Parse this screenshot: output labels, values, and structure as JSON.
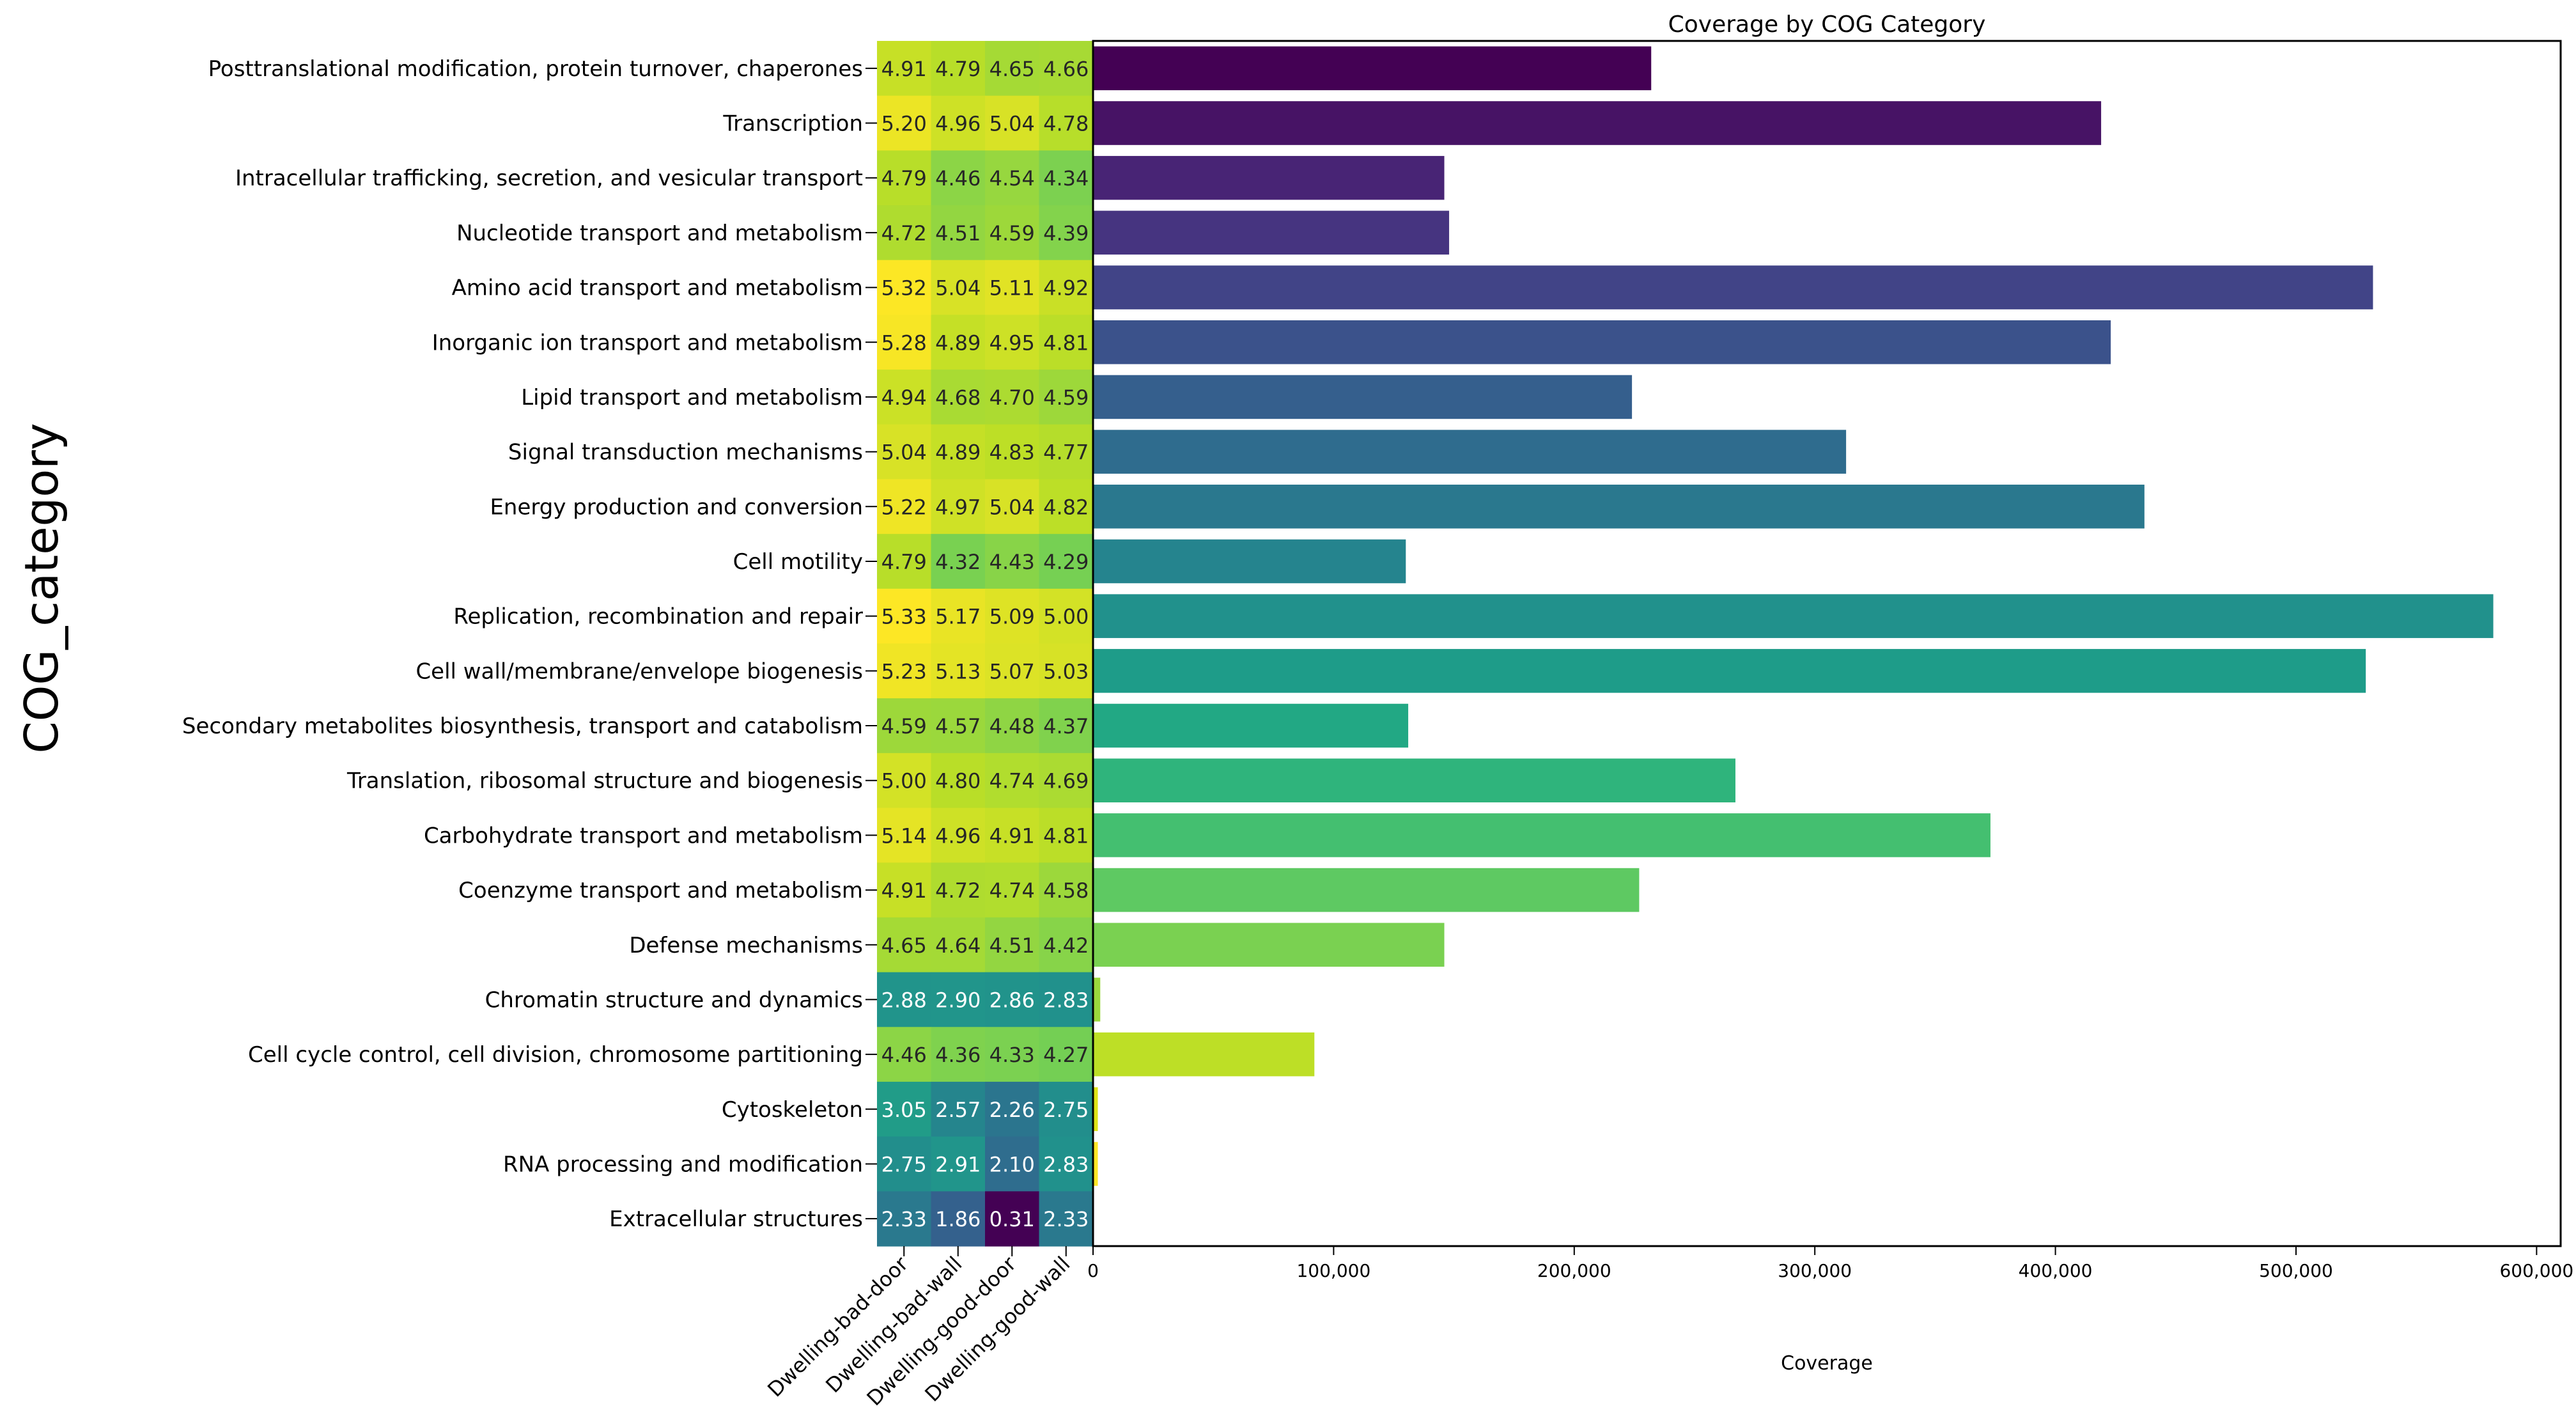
{
  "chart_data": [
    {
      "type": "heatmap",
      "ylabel": "COG_category",
      "columns": [
        "Dwelling-bad-door",
        "Dwelling-bad-wall",
        "Dwelling-good-door",
        "Dwelling-good-wall"
      ],
      "rows": [
        "Posttranslational modification, protein turnover, chaperones",
        "Transcription",
        "Intracellular trafficking, secretion, and vesicular transport",
        "Nucleotide transport and metabolism",
        "Amino acid transport and metabolism",
        "Inorganic ion transport and metabolism",
        "Lipid transport and metabolism",
        "Signal transduction mechanisms",
        "Energy production and conversion",
        "Cell motility",
        "Replication, recombination and repair",
        "Cell wall/membrane/envelope biogenesis",
        "Secondary metabolites biosynthesis, transport and catabolism",
        "Translation, ribosomal structure and biogenesis",
        "Carbohydrate transport and metabolism",
        "Coenzyme transport and metabolism",
        "Defense mechanisms",
        "Chromatin structure and dynamics",
        "Cell cycle control, cell division, chromosome partitioning",
        "Cytoskeleton",
        "RNA processing and modification",
        "Extracellular structures"
      ],
      "values": [
        [
          "4.91",
          "4.79",
          "4.65",
          "4.66"
        ],
        [
          "5.20",
          "4.96",
          "5.04",
          "4.78"
        ],
        [
          "4.79",
          "4.46",
          "4.54",
          "4.34"
        ],
        [
          "4.72",
          "4.51",
          "4.59",
          "4.39"
        ],
        [
          "5.32",
          "5.04",
          "5.11",
          "4.92"
        ],
        [
          "5.28",
          "4.89",
          "4.95",
          "4.81"
        ],
        [
          "4.94",
          "4.68",
          "4.70",
          "4.59"
        ],
        [
          "5.04",
          "4.89",
          "4.83",
          "4.77"
        ],
        [
          "5.22",
          "4.97",
          "5.04",
          "4.82"
        ],
        [
          "4.79",
          "4.32",
          "4.43",
          "4.29"
        ],
        [
          "5.33",
          "5.17",
          "5.09",
          "5.00"
        ],
        [
          "5.23",
          "5.13",
          "5.07",
          "5.03"
        ],
        [
          "4.59",
          "4.57",
          "4.48",
          "4.37"
        ],
        [
          "5.00",
          "4.80",
          "4.74",
          "4.69"
        ],
        [
          "5.14",
          "4.96",
          "4.91",
          "4.81"
        ],
        [
          "4.91",
          "4.72",
          "4.74",
          "4.58"
        ],
        [
          "4.65",
          "4.64",
          "4.51",
          "4.42"
        ],
        [
          "2.88",
          "2.90",
          "2.86",
          "2.83"
        ],
        [
          "4.46",
          "4.36",
          "4.33",
          "4.27"
        ],
        [
          "3.05",
          "2.57",
          "2.26",
          "2.75"
        ],
        [
          "2.75",
          "2.91",
          "2.10",
          "2.83"
        ],
        [
          "2.33",
          "1.86",
          "0.31",
          "2.33"
        ]
      ],
      "color_range": [
        0.31,
        5.33
      ],
      "colormap": "viridis"
    },
    {
      "type": "bar",
      "orientation": "horizontal",
      "title": "Coverage by COG Category",
      "xlabel": "Coverage",
      "ylabel": "",
      "xlim": [
        0,
        610000
      ],
      "xticks": [
        0,
        100000,
        200000,
        300000,
        400000,
        500000,
        600000
      ],
      "xtick_labels": [
        "0",
        "100,000",
        "200,000",
        "300,000",
        "400,000",
        "500,000",
        "600,000"
      ],
      "values": [
        232000,
        419000,
        146000,
        148000,
        532000,
        423000,
        224000,
        313000,
        437000,
        130000,
        582000,
        529000,
        131000,
        267000,
        373000,
        227000,
        146000,
        3000,
        92000,
        2000,
        2000,
        0
      ],
      "colors": [
        "#440154",
        "#471365",
        "#482475",
        "#463480",
        "#414487",
        "#3b528b",
        "#355f8d",
        "#2f6c8e",
        "#2a788e",
        "#25848e",
        "#21918c",
        "#1e9c89",
        "#22a884",
        "#2fb47c",
        "#44bf70",
        "#5ec962",
        "#7ad151",
        "#9bd93c",
        "#bddf26",
        "#dfe318",
        "#fde725",
        "#fde725"
      ]
    }
  ]
}
